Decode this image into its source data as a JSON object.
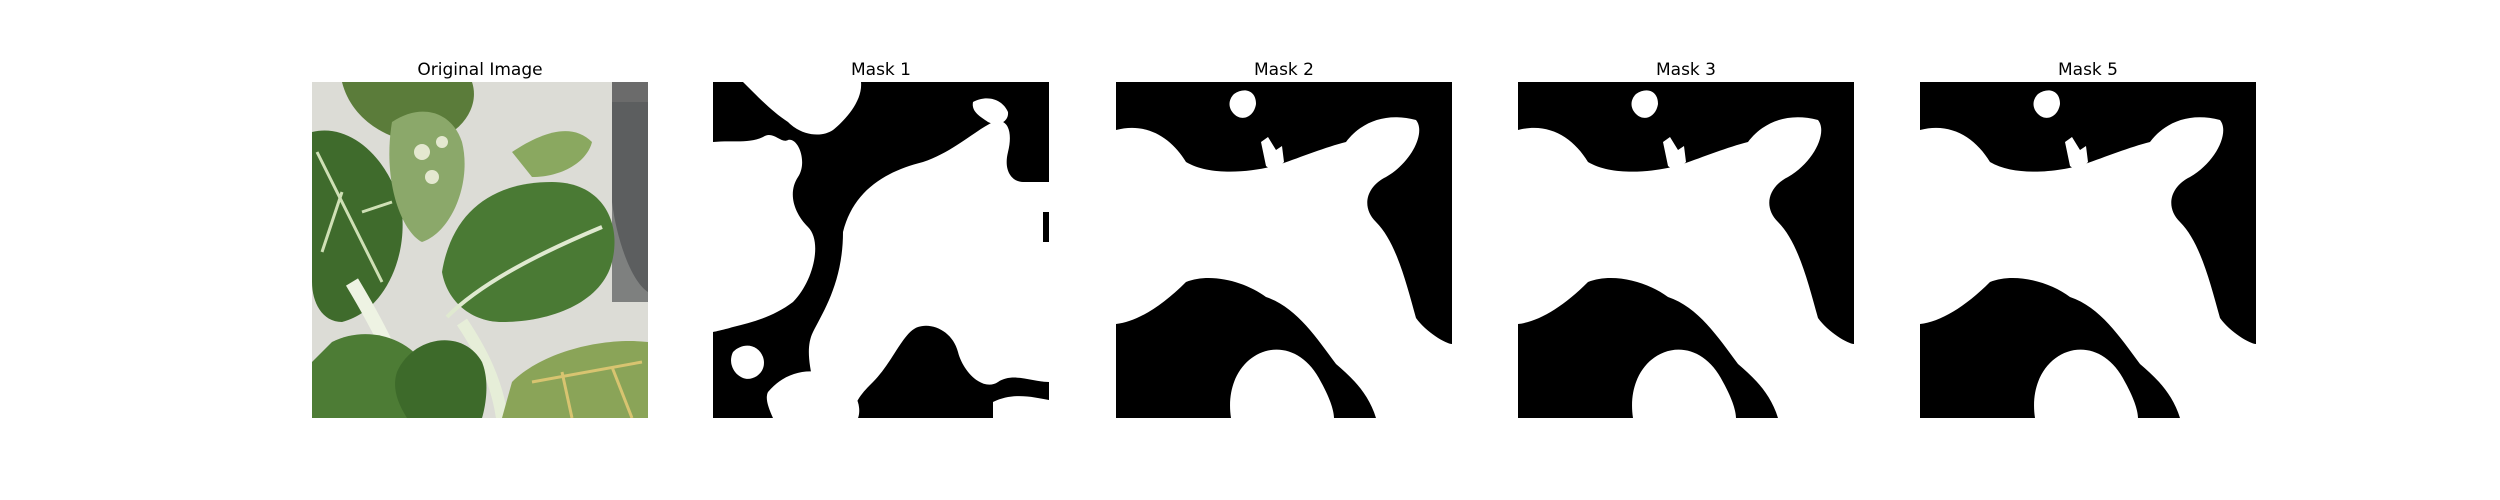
{
  "figure": {
    "panels": [
      {
        "title": "Original Image"
      },
      {
        "title": "Mask 1"
      },
      {
        "title": "Mask 2"
      },
      {
        "title": "Mask 3"
      },
      {
        "title": "Mask 5"
      }
    ]
  },
  "colors": {
    "mask_background": "#000000",
    "mask_foreground": "#ffffff",
    "photo_wall": "#dcdcd6",
    "photo_leaf_dark": "#3f6b2c",
    "photo_leaf_light": "#7fa35a",
    "photo_stem": "#e6eed8"
  }
}
